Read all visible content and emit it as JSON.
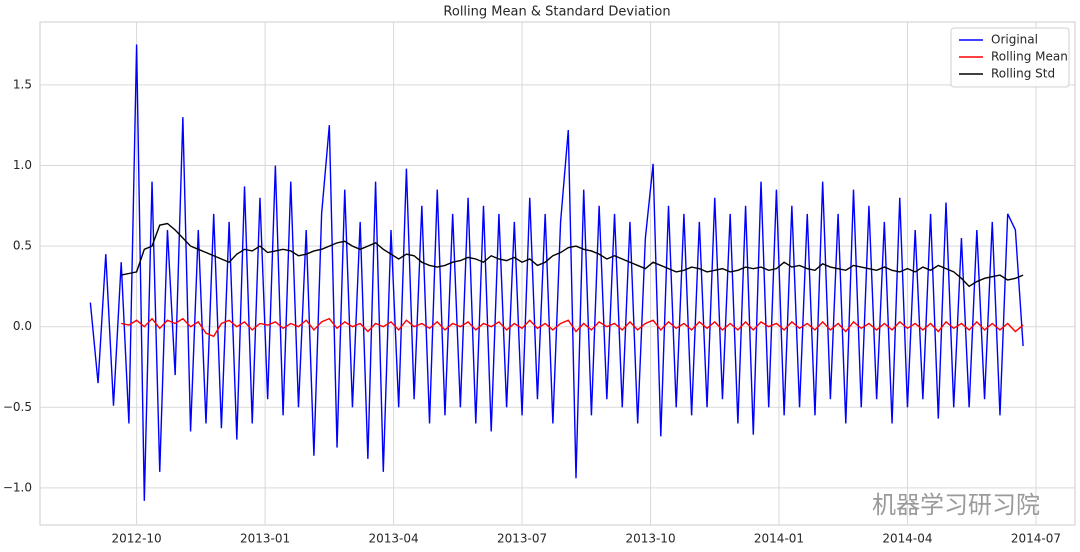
{
  "chart_data": {
    "type": "line",
    "title": "Rolling Mean & Standard Deviation",
    "watermark": "机器学习研习院",
    "x": [
      2012.66,
      2012.675,
      2012.69,
      2012.705,
      2012.72,
      2012.735,
      2012.75,
      2012.765,
      2012.78,
      2012.795,
      2012.81,
      2012.825,
      2012.84,
      2012.855,
      2012.87,
      2012.885,
      2012.9,
      2012.915,
      2012.93,
      2012.945,
      2012.96,
      2012.975,
      2012.99,
      2013.005,
      2013.02,
      2013.035,
      2013.05,
      2013.065,
      2013.08,
      2013.095,
      2013.11,
      2013.125,
      2013.14,
      2013.155,
      2013.17,
      2013.185,
      2013.2,
      2013.215,
      2013.23,
      2013.245,
      2013.26,
      2013.275,
      2013.29,
      2013.305,
      2013.32,
      2013.335,
      2013.35,
      2013.365,
      2013.38,
      2013.395,
      2013.41,
      2013.425,
      2013.44,
      2013.455,
      2013.47,
      2013.485,
      2013.5,
      2013.515,
      2013.53,
      2013.545,
      2013.56,
      2013.575,
      2013.59,
      2013.605,
      2013.62,
      2013.635,
      2013.65,
      2013.665,
      2013.68,
      2013.695,
      2013.71,
      2013.725,
      2013.74,
      2013.755,
      2013.77,
      2013.785,
      2013.8,
      2013.815,
      2013.83,
      2013.845,
      2013.86,
      2013.875,
      2013.89,
      2013.905,
      2013.92,
      2013.935,
      2013.95,
      2013.965,
      2013.98,
      2013.995,
      2014.01,
      2014.025,
      2014.04,
      2014.055,
      2014.07,
      2014.085,
      2014.1,
      2014.115,
      2014.13,
      2014.145,
      2014.16,
      2014.175,
      2014.19,
      2014.205,
      2014.22,
      2014.235,
      2014.25,
      2014.265,
      2014.28,
      2014.295,
      2014.31,
      2014.325,
      2014.34,
      2014.355,
      2014.37,
      2014.385,
      2014.4,
      2014.415,
      2014.43,
      2014.445,
      2014.46,
      2014.475
    ],
    "series": [
      {
        "name": "Original",
        "color": "#0000ff",
        "values": [
          0.15,
          -0.35,
          0.45,
          -0.49,
          0.4,
          -0.6,
          1.75,
          -1.08,
          0.9,
          -0.9,
          0.6,
          -0.3,
          1.3,
          -0.65,
          0.6,
          -0.6,
          0.7,
          -0.63,
          0.65,
          -0.7,
          0.87,
          -0.6,
          0.8,
          -0.45,
          1.0,
          -0.55,
          0.9,
          -0.5,
          0.6,
          -0.8,
          0.7,
          1.25,
          -0.75,
          0.85,
          -0.5,
          0.65,
          -0.82,
          0.9,
          -0.9,
          0.6,
          -0.5,
          0.98,
          -0.45,
          0.75,
          -0.6,
          0.85,
          -0.55,
          0.7,
          -0.5,
          0.8,
          -0.6,
          0.75,
          -0.65,
          0.7,
          -0.5,
          0.65,
          -0.55,
          0.8,
          -0.45,
          0.7,
          -0.6,
          0.65,
          1.22,
          -0.94,
          0.85,
          -0.55,
          0.75,
          -0.45,
          0.7,
          -0.5,
          0.65,
          -0.6,
          0.55,
          1.01,
          -0.68,
          0.75,
          -0.5,
          0.7,
          -0.55,
          0.65,
          -0.5,
          0.8,
          -0.45,
          0.7,
          -0.6,
          0.75,
          -0.67,
          0.9,
          -0.5,
          0.85,
          -0.55,
          0.75,
          -0.5,
          0.7,
          -0.55,
          0.9,
          -0.45,
          0.7,
          -0.6,
          0.85,
          -0.5,
          0.75,
          -0.45,
          0.65,
          -0.6,
          0.8,
          -0.5,
          0.6,
          -0.45,
          0.7,
          -0.57,
          0.77,
          -0.5,
          0.55,
          -0.5,
          0.6,
          -0.45,
          0.65,
          -0.55,
          0.7,
          0.6,
          -0.12
        ]
      },
      {
        "name": "Rolling Mean",
        "color": "#ff0000",
        "values": [
          null,
          null,
          null,
          null,
          0.02,
          0.01,
          0.04,
          0.0,
          0.05,
          -0.01,
          0.04,
          0.02,
          0.05,
          0.0,
          0.03,
          -0.04,
          -0.06,
          0.02,
          0.04,
          0.0,
          0.03,
          -0.02,
          0.02,
          0.01,
          0.03,
          -0.01,
          0.02,
          0.0,
          0.04,
          -0.02,
          0.03,
          0.05,
          -0.01,
          0.03,
          0.0,
          0.02,
          -0.03,
          0.02,
          0.0,
          0.03,
          -0.02,
          0.04,
          0.0,
          0.02,
          -0.01,
          0.03,
          -0.02,
          0.02,
          0.0,
          0.03,
          -0.02,
          0.02,
          0.0,
          0.03,
          -0.02,
          0.02,
          -0.01,
          0.04,
          -0.01,
          0.02,
          -0.02,
          0.02,
          0.04,
          -0.03,
          0.02,
          -0.02,
          0.03,
          0.0,
          0.02,
          -0.02,
          0.03,
          -0.02,
          0.02,
          0.04,
          -0.02,
          0.03,
          -0.01,
          0.02,
          -0.02,
          0.03,
          -0.01,
          0.03,
          -0.02,
          0.02,
          -0.02,
          0.03,
          -0.02,
          0.03,
          0.0,
          0.02,
          -0.02,
          0.03,
          -0.01,
          0.02,
          -0.02,
          0.03,
          -0.02,
          0.02,
          -0.03,
          0.03,
          -0.01,
          0.02,
          -0.02,
          0.02,
          -0.02,
          0.03,
          -0.01,
          0.02,
          -0.02,
          0.02,
          -0.03,
          0.03,
          -0.01,
          0.02,
          -0.02,
          0.03,
          -0.02,
          0.02,
          -0.02,
          0.02,
          -0.03,
          0.01
        ]
      },
      {
        "name": "Rolling Std",
        "color": "#000000",
        "values": [
          null,
          null,
          null,
          null,
          0.32,
          0.33,
          0.34,
          0.48,
          0.5,
          0.63,
          0.64,
          0.6,
          0.55,
          0.5,
          0.48,
          0.46,
          0.44,
          0.42,
          0.4,
          0.45,
          0.48,
          0.47,
          0.5,
          0.46,
          0.47,
          0.48,
          0.47,
          0.44,
          0.45,
          0.47,
          0.48,
          0.5,
          0.52,
          0.53,
          0.5,
          0.48,
          0.5,
          0.52,
          0.48,
          0.45,
          0.42,
          0.45,
          0.44,
          0.4,
          0.38,
          0.37,
          0.38,
          0.4,
          0.41,
          0.43,
          0.42,
          0.4,
          0.44,
          0.42,
          0.41,
          0.43,
          0.4,
          0.42,
          0.38,
          0.4,
          0.44,
          0.46,
          0.49,
          0.5,
          0.48,
          0.47,
          0.45,
          0.42,
          0.44,
          0.42,
          0.4,
          0.38,
          0.36,
          0.4,
          0.38,
          0.36,
          0.34,
          0.35,
          0.37,
          0.36,
          0.34,
          0.35,
          0.36,
          0.34,
          0.35,
          0.37,
          0.36,
          0.37,
          0.35,
          0.36,
          0.4,
          0.37,
          0.38,
          0.36,
          0.35,
          0.39,
          0.37,
          0.36,
          0.35,
          0.38,
          0.37,
          0.36,
          0.35,
          0.37,
          0.35,
          0.34,
          0.36,
          0.34,
          0.37,
          0.35,
          0.38,
          0.36,
          0.34,
          0.3,
          0.25,
          0.28,
          0.3,
          0.31,
          0.32,
          0.29,
          0.3,
          0.32
        ]
      }
    ],
    "xlim": [
      2012.562,
      2014.576
    ],
    "xticks": [
      {
        "value": 2012.75,
        "label": "2012-10"
      },
      {
        "value": 2013.0,
        "label": "2013-01"
      },
      {
        "value": 2013.25,
        "label": "2013-04"
      },
      {
        "value": 2013.5,
        "label": "2013-07"
      },
      {
        "value": 2013.75,
        "label": "2013-10"
      },
      {
        "value": 2014.0,
        "label": "2014-01"
      },
      {
        "value": 2014.25,
        "label": "2014-04"
      },
      {
        "value": 2014.5,
        "label": "2014-07"
      }
    ],
    "ylim": [
      -1.23,
      1.89
    ],
    "yticks": [
      {
        "value": -1.0,
        "label": "−1.0"
      },
      {
        "value": -0.5,
        "label": "−0.5"
      },
      {
        "value": 0.0,
        "label": "0.0"
      },
      0.5,
      {
        "value": 1.0,
        "label": "1.0"
      },
      1.5
    ],
    "grid": true,
    "legend": "upper right"
  }
}
